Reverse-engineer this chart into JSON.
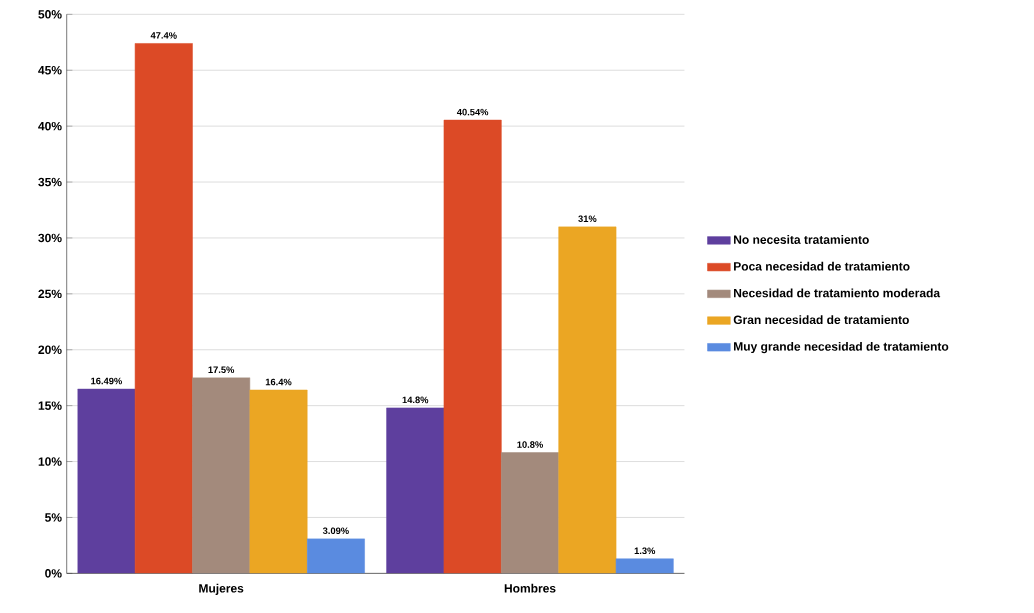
{
  "chart_data": {
    "type": "bar",
    "categories": [
      "Mujeres",
      "Hombres"
    ],
    "series": [
      {
        "name": "No necesita tratamiento",
        "color": "#5e3f9e",
        "values": [
          16.49,
          14.8
        ],
        "value_labels": [
          "16.49%",
          "14.8%"
        ]
      },
      {
        "name": "Poca necesidad de tratamiento",
        "color": "#dc4a26",
        "values": [
          47.4,
          40.54
        ],
        "value_labels": [
          "47.4%",
          "40.54%"
        ]
      },
      {
        "name": "Necesidad de tratamiento moderada",
        "color": "#a38a7c",
        "values": [
          17.5,
          10.8
        ],
        "value_labels": [
          "17.5%",
          "10.8%"
        ]
      },
      {
        "name": "Gran necesidad de tratamiento",
        "color": "#eba623",
        "values": [
          16.4,
          31
        ],
        "value_labels": [
          "16.4%",
          "31%"
        ]
      },
      {
        "name": "Muy grande necesidad de tratamiento",
        "color": "#5a8be0",
        "values": [
          3.09,
          1.3
        ],
        "value_labels": [
          "3.09%",
          "1.3%"
        ]
      }
    ],
    "ylim": [
      0,
      50
    ],
    "yticks": [
      {
        "value": 0,
        "label": "0%"
      },
      {
        "value": 5,
        "label": "5%"
      },
      {
        "value": 10,
        "label": "10%"
      },
      {
        "value": 15,
        "label": "15%"
      },
      {
        "value": 20,
        "label": "20%"
      },
      {
        "value": 25,
        "label": "25%"
      },
      {
        "value": 30,
        "label": "30%"
      },
      {
        "value": 35,
        "label": "35%"
      },
      {
        "value": 40,
        "label": "40%"
      },
      {
        "value": 45,
        "label": "45%"
      },
      {
        "value": 50,
        "label": "50%"
      }
    ],
    "grid": "y",
    "legend": "right"
  }
}
